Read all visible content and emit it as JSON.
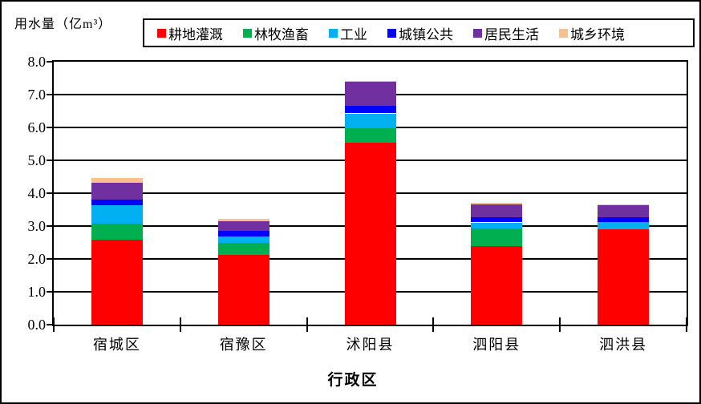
{
  "chart_data": {
    "type": "bar",
    "stacked": true,
    "xlabel": "行政区",
    "ylabel": "用水量（亿m³）",
    "categories": [
      "宿城区",
      "宿豫区",
      "沭阳县",
      "泗阳县",
      "泗洪县"
    ],
    "series": [
      {
        "name": "耕地灌溉",
        "color": "#FF0000",
        "values": [
          2.58,
          2.11,
          5.54,
          2.4,
          2.91
        ]
      },
      {
        "name": "林牧渔畜",
        "color": "#00B050",
        "values": [
          0.5,
          0.38,
          0.44,
          0.53,
          0.0
        ]
      },
      {
        "name": "工业",
        "color": "#00B0F0",
        "values": [
          0.56,
          0.19,
          0.45,
          0.18,
          0.22
        ]
      },
      {
        "name": "城镇公共",
        "color": "#0000FF",
        "values": [
          0.17,
          0.17,
          0.22,
          0.16,
          0.14
        ]
      },
      {
        "name": "居民生活",
        "color": "#7030A0",
        "values": [
          0.5,
          0.3,
          0.74,
          0.39,
          0.37
        ]
      },
      {
        "name": "城乡环境",
        "color": "#FABF8F",
        "values": [
          0.15,
          0.07,
          0.03,
          0.06,
          0.02
        ]
      }
    ],
    "totals": [
      4.46,
      3.22,
      7.42,
      3.72,
      3.66
    ],
    "ylim": [
      0.0,
      8.0
    ],
    "ytick_step": 1.0,
    "ytick_labels": [
      "0.0",
      "1.0",
      "2.0",
      "3.0",
      "4.0",
      "5.0",
      "6.0",
      "7.0",
      "8.0"
    ],
    "grid": true,
    "legend_position": "top"
  }
}
